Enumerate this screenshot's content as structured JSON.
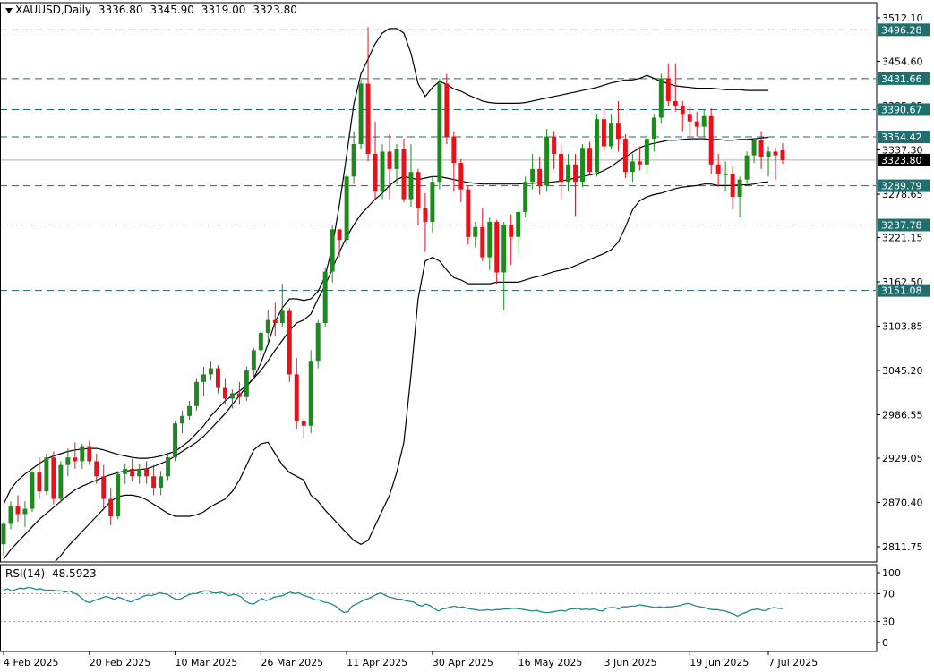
{
  "header": {
    "symbol": "XAUUSD,Daily",
    "open": "3336.80",
    "high": "3345.90",
    "low": "3319.00",
    "close": "3323.80"
  },
  "rsi_header": {
    "label": "RSI(14)",
    "value": "48.5923"
  },
  "colors": {
    "bull": "#1e8a1e",
    "bear": "#e8101a",
    "hline": "#1b6b6b",
    "label_bg": "#1f6f6f",
    "rsi_line": "#1f8a8a",
    "band": "#000000",
    "price_tag": "#000000"
  },
  "chart_data": {
    "type": "candlestick",
    "y_ticks": [
      "3512.10",
      "3454.60",
      "3395.95",
      "3337.30",
      "3278.65",
      "3221.15",
      "3162.50",
      "3103.85",
      "3045.20",
      "2986.55",
      "2929.05",
      "2870.40",
      "2811.75"
    ],
    "ylim": [
      2790,
      3530
    ],
    "x_labels": [
      {
        "index": 0,
        "label": "4 Feb 2025"
      },
      {
        "index": 12,
        "label": "20 Feb 2025"
      },
      {
        "index": 24,
        "label": "10 Mar 2025"
      },
      {
        "index": 36,
        "label": "26 Mar 2025"
      },
      {
        "index": 48,
        "label": "11 Apr 2025"
      },
      {
        "index": 60,
        "label": "30 Apr 2025"
      },
      {
        "index": 72,
        "label": "16 May 2025"
      },
      {
        "index": 84,
        "label": "3 Jun 2025"
      },
      {
        "index": 96,
        "label": "19 Jun 2025"
      },
      {
        "index": 107,
        "label": "7 Jul 2025"
      }
    ],
    "levels": [
      {
        "value": 3496.28,
        "label": "3496.28"
      },
      {
        "value": 3431.66,
        "label": "3431.66"
      },
      {
        "value": 3390.67,
        "label": "3390.67"
      },
      {
        "value": 3354.42,
        "label": "3354.42"
      },
      {
        "value": 3289.79,
        "label": "3289.79"
      },
      {
        "value": 3237.78,
        "label": "3237.78"
      },
      {
        "value": 3151.08,
        "label": "3151.08"
      }
    ],
    "last_price": {
      "value": 3323.8,
      "label": "3323.80"
    },
    "candles": [
      [
        2815,
        2845,
        2800,
        2842
      ],
      [
        2842,
        2872,
        2835,
        2865
      ],
      [
        2865,
        2880,
        2845,
        2855
      ],
      [
        2855,
        2872,
        2838,
        2862
      ],
      [
        2862,
        2912,
        2858,
        2910
      ],
      [
        2910,
        2930,
        2875,
        2885
      ],
      [
        2885,
        2935,
        2880,
        2930
      ],
      [
        2930,
        2938,
        2868,
        2875
      ],
      [
        2875,
        2925,
        2870,
        2920
      ],
      [
        2920,
        2942,
        2905,
        2930
      ],
      [
        2930,
        2950,
        2915,
        2925
      ],
      [
        2925,
        2948,
        2915,
        2945
      ],
      [
        2945,
        2952,
        2920,
        2925
      ],
      [
        2925,
        2935,
        2895,
        2905
      ],
      [
        2905,
        2920,
        2860,
        2875
      ],
      [
        2875,
        2890,
        2840,
        2852
      ],
      [
        2852,
        2912,
        2848,
        2908
      ],
      [
        2908,
        2922,
        2895,
        2915
      ],
      [
        2915,
        2928,
        2898,
        2905
      ],
      [
        2905,
        2922,
        2895,
        2915
      ],
      [
        2915,
        2925,
        2895,
        2905
      ],
      [
        2905,
        2920,
        2880,
        2890
      ],
      [
        2890,
        2912,
        2880,
        2905
      ],
      [
        2905,
        2935,
        2900,
        2930
      ],
      [
        2930,
        2978,
        2925,
        2975
      ],
      [
        2975,
        2992,
        2962,
        2985
      ],
      [
        2985,
        3005,
        2980,
        2998
      ],
      [
        2998,
        3035,
        2992,
        3030
      ],
      [
        3030,
        3050,
        3012,
        3040
      ],
      [
        3040,
        3058,
        3032,
        3048
      ],
      [
        3048,
        3052,
        3015,
        3022
      ],
      [
        3022,
        3035,
        3000,
        3008
      ],
      [
        3008,
        3020,
        2995,
        3015
      ],
      [
        3015,
        3030,
        3000,
        3010
      ],
      [
        3010,
        3050,
        3005,
        3045
      ],
      [
        3045,
        3075,
        3035,
        3072
      ],
      [
        3072,
        3098,
        3065,
        3095
      ],
      [
        3095,
        3125,
        3082,
        3112
      ],
      [
        3112,
        3135,
        3090,
        3108
      ],
      [
        3108,
        3160,
        3102,
        3124
      ],
      [
        3124,
        3128,
        3030,
        3040
      ],
      [
        3040,
        3062,
        2968,
        2978
      ],
      [
        2978,
        2982,
        2955,
        2972
      ],
      [
        2972,
        3072,
        2962,
        3058
      ],
      [
        3058,
        3112,
        3048,
        3108
      ],
      [
        3108,
        3182,
        3102,
        3176
      ],
      [
        3176,
        3238,
        3162,
        3232
      ],
      [
        3232,
        3232,
        3195,
        3218
      ],
      [
        3218,
        3305,
        3212,
        3302
      ],
      [
        3302,
        3362,
        3292,
        3345
      ],
      [
        3345,
        3430,
        3338,
        3425
      ],
      [
        3425,
        3500,
        3322,
        3332
      ],
      [
        3332,
        3375,
        3272,
        3282
      ],
      [
        3282,
        3345,
        3272,
        3335
      ],
      [
        3335,
        3358,
        3272,
        3312
      ],
      [
        3312,
        3345,
        3292,
        3338
      ],
      [
        3338,
        3352,
        3268,
        3272
      ],
      [
        3272,
        3345,
        3262,
        3308
      ],
      [
        3308,
        3312,
        3238,
        3260
      ],
      [
        3260,
        3280,
        3202,
        3242
      ],
      [
        3242,
        3302,
        3228,
        3295
      ],
      [
        3295,
        3432,
        3285,
        3425
      ],
      [
        3425,
        3438,
        3345,
        3355
      ],
      [
        3355,
        3362,
        3282,
        3320
      ],
      [
        3320,
        3325,
        3268,
        3285
      ],
      [
        3285,
        3290,
        3212,
        3222
      ],
      [
        3222,
        3242,
        3208,
        3235
      ],
      [
        3235,
        3260,
        3190,
        3195
      ],
      [
        3195,
        3248,
        3178,
        3242
      ],
      [
        3242,
        3245,
        3160,
        3175
      ],
      [
        3175,
        3242,
        3125,
        3238
      ],
      [
        3238,
        3252,
        3185,
        3222
      ],
      [
        3222,
        3262,
        3200,
        3255
      ],
      [
        3255,
        3302,
        3248,
        3295
      ],
      [
        3295,
        3332,
        3285,
        3312
      ],
      [
        3312,
        3328,
        3278,
        3290
      ],
      [
        3290,
        3365,
        3282,
        3355
      ],
      [
        3355,
        3362,
        3312,
        3332
      ],
      [
        3332,
        3345,
        3272,
        3295
      ],
      [
        3295,
        3332,
        3282,
        3318
      ],
      [
        3318,
        3332,
        3250,
        3295
      ],
      [
        3295,
        3345,
        3288,
        3340
      ],
      [
        3340,
        3348,
        3305,
        3308
      ],
      [
        3308,
        3385,
        3302,
        3378
      ],
      [
        3378,
        3395,
        3335,
        3342
      ],
      [
        3342,
        3385,
        3338,
        3372
      ],
      [
        3372,
        3402,
        3335,
        3352
      ],
      [
        3352,
        3358,
        3300,
        3308
      ],
      [
        3308,
        3332,
        3295,
        3322
      ],
      [
        3322,
        3342,
        3310,
        3318
      ],
      [
        3318,
        3358,
        3305,
        3352
      ],
      [
        3352,
        3385,
        3335,
        3380
      ],
      [
        3380,
        3438,
        3372,
        3432
      ],
      [
        3432,
        3452,
        3395,
        3402
      ],
      [
        3402,
        3452,
        3388,
        3395
      ],
      [
        3395,
        3402,
        3362,
        3385
      ],
      [
        3385,
        3395,
        3355,
        3375
      ],
      [
        3375,
        3388,
        3355,
        3368
      ],
      [
        3368,
        3390,
        3355,
        3382
      ],
      [
        3382,
        3392,
        3305,
        3318
      ],
      [
        3318,
        3332,
        3288,
        3305
      ],
      [
        3305,
        3322,
        3282,
        3305
      ],
      [
        3305,
        3315,
        3258,
        3275
      ],
      [
        3275,
        3302,
        3248,
        3298
      ],
      [
        3298,
        3335,
        3290,
        3330
      ],
      [
        3330,
        3352,
        3320,
        3350
      ],
      [
        3350,
        3362,
        3312,
        3328
      ],
      [
        3328,
        3342,
        3302,
        3335
      ],
      [
        3335,
        3340,
        3298,
        3330
      ],
      [
        3336.8,
        3345.9,
        3319.0,
        3323.8
      ]
    ],
    "bollinger": {
      "upper": [
        2868,
        2888,
        2900,
        2908,
        2915,
        2922,
        2928,
        2932,
        2935,
        2938,
        2940,
        2941,
        2942,
        2942,
        2940,
        2937,
        2934,
        2932,
        2930,
        2929,
        2929,
        2930,
        2932,
        2935,
        2938,
        2945,
        2952,
        2962,
        2972,
        2985,
        2995,
        3005,
        3012,
        3018,
        3025,
        3035,
        3055,
        3080,
        3110,
        3128,
        3140,
        3140,
        3138,
        3140,
        3150,
        3170,
        3210,
        3265,
        3330,
        3398,
        3438,
        3458,
        3478,
        3492,
        3498,
        3498,
        3492,
        3465,
        3425,
        3408,
        3420,
        3428,
        3424,
        3418,
        3415,
        3410,
        3406,
        3402,
        3400,
        3399,
        3399,
        3399,
        3399,
        3400,
        3402,
        3404,
        3406,
        3408,
        3410,
        3412,
        3414,
        3416,
        3418,
        3420,
        3423,
        3426,
        3428,
        3430,
        3430,
        3432,
        3436,
        3432,
        3428,
        3425,
        3422,
        3421,
        3420,
        3419,
        3419,
        3419,
        3418,
        3417,
        3417,
        3417,
        3416,
        3416,
        3416,
        3416
      ],
      "middle": [
        2795,
        2808,
        2818,
        2828,
        2838,
        2848,
        2856,
        2864,
        2872,
        2880,
        2887,
        2892,
        2896,
        2900,
        2904,
        2907,
        2910,
        2912,
        2913,
        2914,
        2915,
        2918,
        2922,
        2926,
        2932,
        2938,
        2944,
        2950,
        2958,
        2968,
        2978,
        2988,
        3000,
        3012,
        3024,
        3035,
        3045,
        3058,
        3072,
        3085,
        3098,
        3108,
        3112,
        3120,
        3140,
        3158,
        3180,
        3202,
        3222,
        3238,
        3252,
        3262,
        3272,
        3280,
        3290,
        3298,
        3302,
        3300,
        3298,
        3300,
        3302,
        3302,
        3300,
        3298,
        3296,
        3294,
        3293,
        3292,
        3292,
        3292,
        3292,
        3292,
        3292,
        3293,
        3293,
        3294,
        3294,
        3295,
        3296,
        3298,
        3300,
        3302,
        3304,
        3306,
        3310,
        3315,
        3322,
        3328,
        3334,
        3340,
        3344,
        3346,
        3348,
        3350,
        3350,
        3351,
        3352,
        3352,
        3352,
        3351,
        3351,
        3350,
        3350,
        3351,
        3351,
        3352,
        3353,
        3354
      ],
      "lower": [
        2728,
        2735,
        2742,
        2750,
        2760,
        2768,
        2778,
        2790,
        2800,
        2812,
        2822,
        2832,
        2842,
        2852,
        2862,
        2872,
        2878,
        2880,
        2880,
        2878,
        2874,
        2868,
        2862,
        2856,
        2852,
        2852,
        2852,
        2854,
        2858,
        2865,
        2870,
        2875,
        2885,
        2900,
        2920,
        2940,
        2948,
        2950,
        2935,
        2920,
        2910,
        2905,
        2900,
        2880,
        2872,
        2860,
        2850,
        2840,
        2830,
        2820,
        2815,
        2820,
        2840,
        2860,
        2880,
        2910,
        2950,
        3040,
        3140,
        3190,
        3195,
        3190,
        3178,
        3168,
        3165,
        3160,
        3160,
        3160,
        3160,
        3162,
        3162,
        3162,
        3162,
        3165,
        3168,
        3170,
        3173,
        3176,
        3178,
        3180,
        3184,
        3188,
        3192,
        3196,
        3200,
        3205,
        3215,
        3235,
        3258,
        3270,
        3275,
        3278,
        3280,
        3283,
        3286,
        3288,
        3289,
        3290,
        3292,
        3292,
        3290,
        3290,
        3290,
        3291,
        3291,
        3292,
        3294,
        3295
      ]
    },
    "rsi": {
      "levels": [
        100,
        70,
        30,
        0
      ],
      "dotted_levels": [
        70,
        30
      ],
      "values": [
        75,
        77,
        74,
        76,
        78,
        77,
        79,
        78,
        76,
        77,
        75,
        75,
        75,
        74,
        74,
        72,
        74,
        71,
        69,
        64,
        59,
        57,
        60,
        62,
        64,
        66,
        64,
        62,
        65,
        63,
        60,
        58,
        61,
        63,
        66,
        68,
        67,
        69,
        71,
        70,
        69,
        65,
        62,
        62,
        65,
        68,
        70,
        70,
        72,
        74,
        74,
        71,
        71,
        72,
        70,
        67,
        69,
        68,
        65,
        59,
        56,
        55,
        59,
        63,
        60,
        62,
        65,
        66,
        67,
        70,
        72,
        70,
        71,
        68,
        66,
        64,
        61,
        61,
        58,
        57,
        55,
        52,
        47,
        43,
        44,
        52,
        55,
        58,
        61,
        63,
        66,
        69,
        71,
        68,
        65,
        64,
        62,
        62,
        60,
        59,
        58,
        54,
        52,
        55,
        53,
        49,
        45,
        48,
        49,
        51,
        52,
        50,
        51,
        49,
        48,
        47,
        46,
        46,
        47,
        46,
        47,
        47,
        48,
        48,
        49,
        49,
        48,
        47,
        46,
        45,
        46,
        44,
        43,
        43,
        44,
        45,
        46,
        45,
        48,
        48,
        49,
        47,
        48,
        47,
        48,
        46,
        45,
        49,
        50,
        50,
        48,
        51,
        51,
        52,
        52,
        54,
        53,
        52,
        51,
        50,
        51,
        50,
        51,
        51,
        52,
        53,
        55,
        56,
        54,
        52,
        51,
        50,
        48,
        47,
        47,
        46,
        45,
        43,
        41,
        38,
        41,
        43,
        46,
        47,
        48,
        46,
        46,
        49,
        50,
        49,
        48.5923
      ]
    },
    "rsi_x_scale": 0.5
  }
}
